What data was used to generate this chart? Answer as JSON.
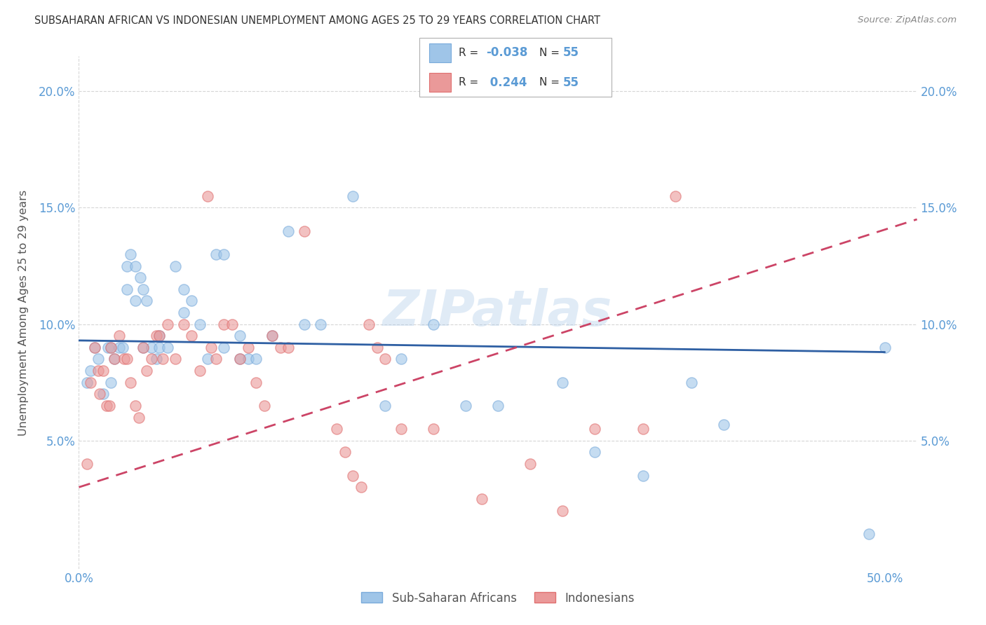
{
  "title": "SUBSAHARAN AFRICAN VS INDONESIAN UNEMPLOYMENT AMONG AGES 25 TO 29 YEARS CORRELATION CHART",
  "source": "Source: ZipAtlas.com",
  "ylabel": "Unemployment Among Ages 25 to 29 years",
  "xlim": [
    0.0,
    0.52
  ],
  "ylim": [
    -0.005,
    0.215
  ],
  "xticks": [
    0.0,
    0.1,
    0.2,
    0.3,
    0.4,
    0.5
  ],
  "xtick_labels": [
    "0.0%",
    "",
    "",
    "",
    "",
    "50.0%"
  ],
  "yticks_left": [
    0.05,
    0.1,
    0.15,
    0.2
  ],
  "ytick_labels_left": [
    "5.0%",
    "10.0%",
    "15.0%",
    "20.0%"
  ],
  "blue_color": "#9fc5e8",
  "pink_color": "#ea9999",
  "blue_line_color": "#2e5fa3",
  "pink_line_color": "#cc4466",
  "watermark": "ZIPatlas",
  "blue_scatter_x": [
    0.005,
    0.007,
    0.01,
    0.012,
    0.015,
    0.018,
    0.02,
    0.02,
    0.022,
    0.025,
    0.027,
    0.03,
    0.03,
    0.032,
    0.035,
    0.035,
    0.038,
    0.04,
    0.04,
    0.042,
    0.045,
    0.048,
    0.05,
    0.05,
    0.055,
    0.06,
    0.065,
    0.065,
    0.07,
    0.075,
    0.08,
    0.085,
    0.09,
    0.09,
    0.1,
    0.1,
    0.105,
    0.11,
    0.12,
    0.13,
    0.14,
    0.15,
    0.17,
    0.19,
    0.2,
    0.22,
    0.24,
    0.26,
    0.3,
    0.32,
    0.35,
    0.38,
    0.4,
    0.49,
    0.5
  ],
  "blue_scatter_y": [
    0.075,
    0.08,
    0.09,
    0.085,
    0.07,
    0.09,
    0.09,
    0.075,
    0.085,
    0.09,
    0.09,
    0.125,
    0.115,
    0.13,
    0.125,
    0.11,
    0.12,
    0.115,
    0.09,
    0.11,
    0.09,
    0.085,
    0.095,
    0.09,
    0.09,
    0.125,
    0.115,
    0.105,
    0.11,
    0.1,
    0.085,
    0.13,
    0.13,
    0.09,
    0.095,
    0.085,
    0.085,
    0.085,
    0.095,
    0.14,
    0.1,
    0.1,
    0.155,
    0.065,
    0.085,
    0.1,
    0.065,
    0.065,
    0.075,
    0.045,
    0.035,
    0.075,
    0.057,
    0.01,
    0.09
  ],
  "pink_scatter_x": [
    0.005,
    0.007,
    0.01,
    0.012,
    0.013,
    0.015,
    0.017,
    0.019,
    0.02,
    0.022,
    0.025,
    0.028,
    0.03,
    0.032,
    0.035,
    0.037,
    0.04,
    0.042,
    0.045,
    0.048,
    0.05,
    0.052,
    0.055,
    0.06,
    0.065,
    0.07,
    0.075,
    0.08,
    0.082,
    0.085,
    0.09,
    0.095,
    0.1,
    0.105,
    0.11,
    0.115,
    0.12,
    0.125,
    0.13,
    0.14,
    0.16,
    0.165,
    0.17,
    0.175,
    0.18,
    0.185,
    0.19,
    0.2,
    0.22,
    0.25,
    0.28,
    0.3,
    0.32,
    0.35,
    0.37
  ],
  "pink_scatter_y": [
    0.04,
    0.075,
    0.09,
    0.08,
    0.07,
    0.08,
    0.065,
    0.065,
    0.09,
    0.085,
    0.095,
    0.085,
    0.085,
    0.075,
    0.065,
    0.06,
    0.09,
    0.08,
    0.085,
    0.095,
    0.095,
    0.085,
    0.1,
    0.085,
    0.1,
    0.095,
    0.08,
    0.155,
    0.09,
    0.085,
    0.1,
    0.1,
    0.085,
    0.09,
    0.075,
    0.065,
    0.095,
    0.09,
    0.09,
    0.14,
    0.055,
    0.045,
    0.035,
    0.03,
    0.1,
    0.09,
    0.085,
    0.055,
    0.055,
    0.025,
    0.04,
    0.02,
    0.055,
    0.055,
    0.155
  ],
  "blue_trend_x": [
    0.0,
    0.5
  ],
  "blue_trend_y": [
    0.093,
    0.088
  ],
  "pink_trend_x": [
    0.0,
    0.52
  ],
  "pink_trend_y": [
    0.03,
    0.145
  ],
  "bg_color": "#ffffff",
  "grid_color": "#cccccc",
  "title_color": "#333333",
  "axis_color": "#5b9bd5",
  "scatter_alpha": 0.6,
  "scatter_size": 120,
  "scatter_linewidth": 1.0,
  "scatter_edge_blue": "#7aabdb",
  "scatter_edge_pink": "#e07070"
}
